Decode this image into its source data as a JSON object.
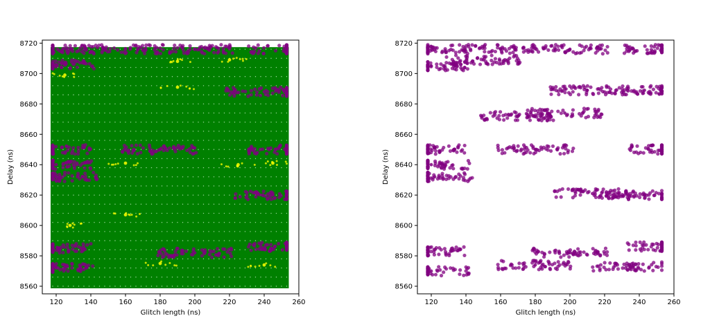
{
  "chart_data": [
    {
      "type": "scatter",
      "title": "",
      "xlabel": "Glitch length (ns)",
      "ylabel": "Delay (ns)",
      "xlim": [
        112,
        260
      ],
      "ylim": [
        8555,
        8722
      ],
      "xticks": [
        120,
        140,
        160,
        180,
        200,
        220,
        240,
        260
      ],
      "yticks": [
        8560,
        8580,
        8600,
        8620,
        8640,
        8660,
        8680,
        8700,
        8720
      ],
      "grid": false,
      "legend": "none",
      "background_series": {
        "color": "#008000",
        "x_range": [
          118,
          253
        ],
        "x_step": 3,
        "y_range": [
          8560,
          8716
        ],
        "y_step": 2
      },
      "series": [
        {
          "color": "#800080",
          "values": [
            {
              "x": 118,
              "y": 8716
            },
            {
              "x": 160,
              "y": 8716
            },
            {
              "x": 200,
              "y": 8716
            },
            {
              "x": 253,
              "y": 8716
            },
            {
              "x": 120,
              "y": 8706
            },
            {
              "x": 118,
              "y": 8650
            },
            {
              "x": 180,
              "y": 8650
            },
            {
              "x": 253,
              "y": 8650
            },
            {
              "x": 120,
              "y": 8640
            },
            {
              "x": 122,
              "y": 8632
            },
            {
              "x": 118,
              "y": 8585
            },
            {
              "x": 200,
              "y": 8582
            },
            {
              "x": 253,
              "y": 8586
            },
            {
              "x": 120,
              "y": 8572
            },
            {
              "x": 240,
              "y": 8688
            },
            {
              "x": 245,
              "y": 8620
            }
          ]
        },
        {
          "color": "#ffff00",
          "values": [
            {
              "x": 125,
              "y": 8699
            },
            {
              "x": 190,
              "y": 8708
            },
            {
              "x": 220,
              "y": 8709
            },
            {
              "x": 160,
              "y": 8641
            },
            {
              "x": 225,
              "y": 8640
            },
            {
              "x": 245,
              "y": 8641
            },
            {
              "x": 180,
              "y": 8575
            },
            {
              "x": 240,
              "y": 8574
            },
            {
              "x": 190,
              "y": 8691
            },
            {
              "x": 160,
              "y": 8607
            },
            {
              "x": 128,
              "y": 8600
            }
          ]
        }
      ]
    },
    {
      "type": "scatter",
      "title": "",
      "xlabel": "Glitch length (ns)",
      "ylabel": "Delay (ns)",
      "xlim": [
        112,
        260
      ],
      "ylim": [
        8555,
        8722
      ],
      "xticks": [
        120,
        140,
        160,
        180,
        200,
        220,
        240,
        260
      ],
      "yticks": [
        8560,
        8580,
        8600,
        8620,
        8640,
        8660,
        8680,
        8700,
        8720
      ],
      "grid": false,
      "legend": "none",
      "series": [
        {
          "color": "#800080",
          "values": [
            {
              "x": 118,
              "y": 8716
            },
            {
              "x": 160,
              "y": 8716
            },
            {
              "x": 200,
              "y": 8716
            },
            {
              "x": 253,
              "y": 8716
            },
            {
              "x": 120,
              "y": 8705
            },
            {
              "x": 150,
              "y": 8709
            },
            {
              "x": 210,
              "y": 8689
            },
            {
              "x": 243,
              "y": 8689
            },
            {
              "x": 170,
              "y": 8672
            },
            {
              "x": 197,
              "y": 8674
            },
            {
              "x": 118,
              "y": 8650
            },
            {
              "x": 180,
              "y": 8650
            },
            {
              "x": 253,
              "y": 8650
            },
            {
              "x": 120,
              "y": 8640
            },
            {
              "x": 122,
              "y": 8632
            },
            {
              "x": 213,
              "y": 8621
            },
            {
              "x": 243,
              "y": 8620
            },
            {
              "x": 118,
              "y": 8583
            },
            {
              "x": 200,
              "y": 8582
            },
            {
              "x": 253,
              "y": 8586
            },
            {
              "x": 120,
              "y": 8570
            },
            {
              "x": 180,
              "y": 8574
            },
            {
              "x": 235,
              "y": 8573
            }
          ]
        }
      ]
    }
  ]
}
